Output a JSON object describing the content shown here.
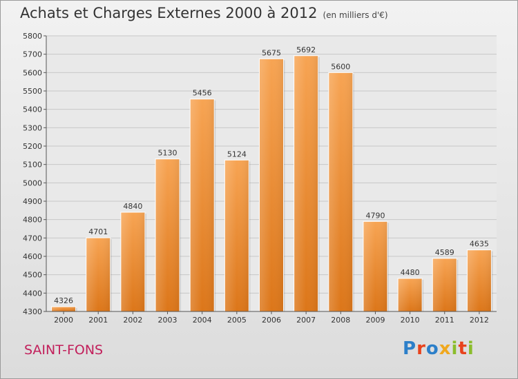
{
  "header": {
    "title": "Achats et Charges Externes 2000 à 2012",
    "subtitle": "(en milliers d'€)"
  },
  "footer": {
    "city": "SAINT-FONS",
    "logo_text": "Proxiti"
  },
  "colors": {
    "bar_top": "#f7a453",
    "bar_bottom": "#dc7619",
    "grid": "#c8c8c8",
    "city": "#c21f5b"
  },
  "chart_data": {
    "type": "bar",
    "categories": [
      "2000",
      "2001",
      "2002",
      "2003",
      "2004",
      "2005",
      "2006",
      "2007",
      "2008",
      "2009",
      "2010",
      "2011",
      "2012"
    ],
    "values": [
      4326,
      4701,
      4840,
      5130,
      5456,
      5124,
      5675,
      5692,
      5600,
      4790,
      4480,
      4589,
      4635
    ],
    "title": "Achats et Charges Externes 2000 à 2012",
    "ylim": [
      4300,
      5800
    ],
    "yticks": [
      4300,
      4400,
      4500,
      4600,
      4700,
      4800,
      4900,
      5000,
      5100,
      5200,
      5300,
      5400,
      5500,
      5600,
      5700,
      5800
    ],
    "grid": true,
    "legend": "none"
  }
}
